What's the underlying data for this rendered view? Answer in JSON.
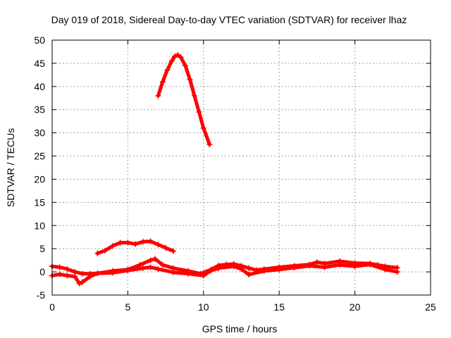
{
  "chart_data": {
    "type": "line",
    "title": "Day 019 of 2018, Sidereal Day-to-day VTEC variation (SDTVAR) for receiver lhaz",
    "xlabel": "GPS time / hours",
    "ylabel": "SDTVAR / TECUs",
    "xlim": [
      0,
      25
    ],
    "ylim": [
      -5,
      50
    ],
    "xticks": [
      0,
      5,
      10,
      15,
      20,
      25
    ],
    "yticks": [
      -5,
      0,
      5,
      10,
      15,
      20,
      25,
      30,
      35,
      40,
      45,
      50
    ],
    "grid": true,
    "legend": "none",
    "series": [
      {
        "name": "arc-peak",
        "color": "#ff0000",
        "x": [
          7.0,
          7.3,
          7.6,
          7.9,
          8.1,
          8.3,
          8.5,
          8.8,
          9.1,
          9.4,
          9.7,
          10.0,
          10.4
        ],
        "y": [
          38,
          41,
          43.5,
          45.5,
          46.5,
          46.8,
          46.3,
          44.5,
          41.5,
          38,
          34.5,
          31,
          27.5
        ]
      },
      {
        "name": "arc-mid",
        "color": "#ff0000",
        "x": [
          3.0,
          3.5,
          4.0,
          4.5,
          5.0,
          5.5,
          6.0,
          6.5,
          7.0,
          7.5,
          8.0
        ],
        "y": [
          4.0,
          4.6,
          5.6,
          6.3,
          6.3,
          6.0,
          6.5,
          6.6,
          5.9,
          5.2,
          4.5
        ]
      },
      {
        "name": "arc-low-a",
        "color": "#ff0000",
        "x": [
          0,
          0.5,
          1.0,
          1.5,
          2.0,
          2.5,
          3.0,
          4.0,
          5.0,
          5.8,
          6.5,
          6.8,
          7.3,
          8.0,
          9.0,
          9.8,
          10.5,
          11.0,
          11.5,
          12.0,
          12.5,
          13.0,
          13.5,
          14.0,
          15.0,
          16.0,
          17.0,
          17.5,
          18.0,
          19.0,
          20.0,
          21.0,
          21.5,
          22.0,
          22.8
        ],
        "y": [
          1.2,
          1.0,
          0.6,
          0.0,
          -0.4,
          -0.4,
          -0.3,
          0.2,
          0.5,
          1.5,
          2.5,
          2.8,
          1.5,
          0.8,
          0.2,
          -0.4,
          0.5,
          1.4,
          1.6,
          1.7,
          1.3,
          0.8,
          0.4,
          0.6,
          1.0,
          1.3,
          1.6,
          2.1,
          1.8,
          2.3,
          1.9,
          1.8,
          1.5,
          1.2,
          0.9
        ]
      },
      {
        "name": "arc-low-b",
        "color": "#ff0000",
        "x": [
          0,
          0.5,
          1.0,
          1.5,
          1.8,
          2.0,
          2.5,
          3.0,
          4.0,
          5.0,
          6.0,
          6.5,
          7.0,
          8.0,
          9.0,
          10.0,
          10.5,
          11.0,
          12.0,
          12.5,
          13.0,
          14.0,
          15.0,
          16.0,
          17.0,
          18.0,
          19.0,
          20.0,
          21.0,
          22.0,
          22.8
        ],
        "y": [
          -0.8,
          -0.5,
          -0.8,
          -1.0,
          -2.5,
          -2.2,
          -1.0,
          -0.3,
          -0.2,
          0.3,
          0.8,
          1.0,
          0.6,
          -0.1,
          -0.4,
          -0.8,
          0.3,
          0.8,
          1.2,
          0.6,
          -0.6,
          0.2,
          0.5,
          0.9,
          1.3,
          1.0,
          1.5,
          1.2,
          1.6,
          0.5,
          0.0
        ]
      }
    ]
  }
}
